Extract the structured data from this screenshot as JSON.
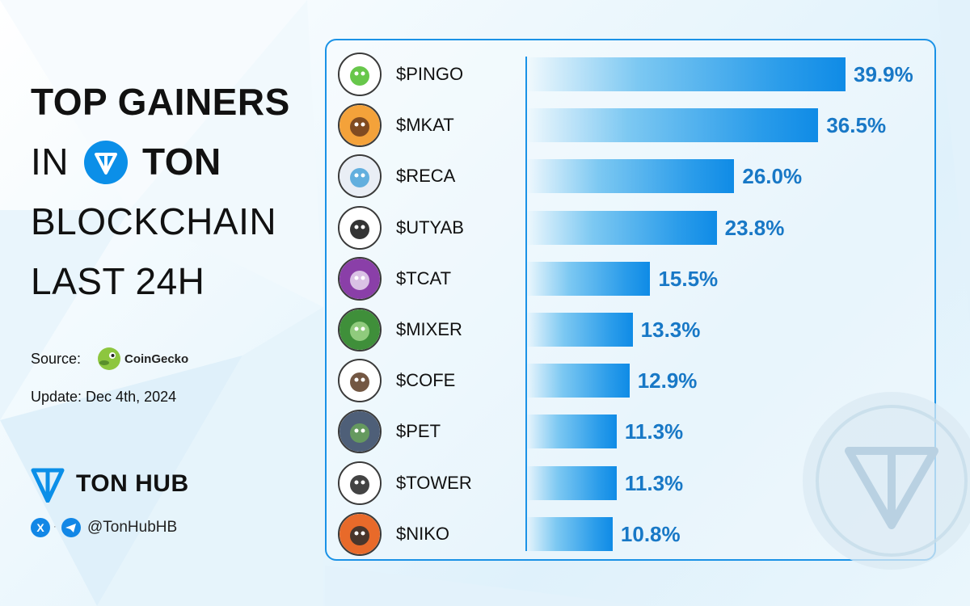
{
  "title": {
    "line1": "TOP GAINERS",
    "line2_prefix": "IN",
    "line2_brand": "TON",
    "line3": "BLOCKCHAIN",
    "line4": "LAST 24H"
  },
  "source": {
    "label": "Source:",
    "provider": "CoinGecko"
  },
  "update": "Update: Dec 4th, 2024",
  "brand": {
    "name": "TON HUB",
    "handle": "@TonHubHB",
    "x_icon": "x-icon",
    "telegram_icon": "telegram-icon"
  },
  "colors": {
    "accent": "#1a92e6",
    "value_text": "#1878c6",
    "bar_end": "#0f8be6"
  },
  "chart_data": {
    "type": "bar",
    "orientation": "horizontal",
    "categories": [
      "$PINGO",
      "$MKAT",
      "$RECA",
      "$UTYAB",
      "$TCAT",
      "$MIXER",
      "$COFE",
      "$PET",
      "$TOWER",
      "$NIKO"
    ],
    "values": [
      39.9,
      36.5,
      26.0,
      23.8,
      15.5,
      13.3,
      12.9,
      11.3,
      11.3,
      10.8
    ],
    "value_labels": [
      "39.9%",
      "36.5%",
      "26.0%",
      "23.8%",
      "15.5%",
      "13.3%",
      "12.9%",
      "11.3%",
      "11.3%",
      "10.8%"
    ],
    "unit": "%",
    "icons": [
      "pingo-logo-icon",
      "meerkat-avatar-icon",
      "cat-avatar-icon",
      "utyab-logo-icon",
      "tcat-avatar-icon",
      "mixer-leaf-icon",
      "coffee-cup-icon",
      "pet-avatar-icon",
      "tower-logo-icon",
      "niko-avatar-icon"
    ]
  }
}
